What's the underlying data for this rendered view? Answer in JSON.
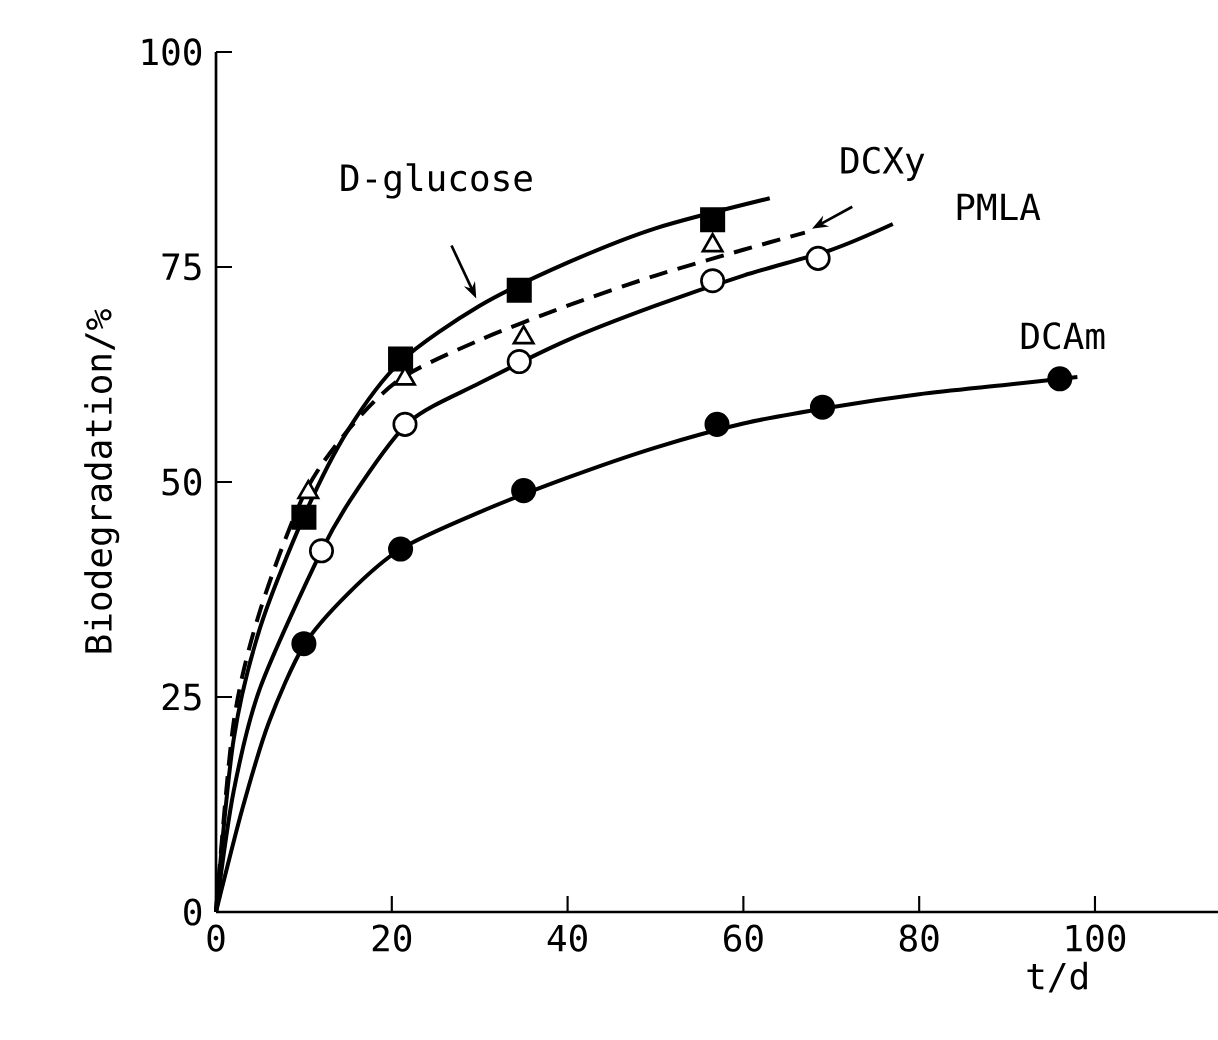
{
  "chart_data": {
    "type": "scatter",
    "xlabel": "t/d",
    "ylabel": "Biodegradation/%",
    "xlim": [
      0,
      114
    ],
    "ylim": [
      0,
      100
    ],
    "xticks": [
      0,
      20,
      40,
      60,
      80,
      100
    ],
    "yticks": [
      0,
      25,
      50,
      75,
      100
    ],
    "annotations": [
      {
        "text": "D-glucose",
        "x": 30,
        "y": 70.5
      },
      {
        "text": "DCXy",
        "x": 67,
        "y": 79
      },
      "PMLA",
      "DCAm"
    ],
    "series": [
      {
        "marker": "square",
        "color": "#000000",
        "x": [
          10,
          21,
          34.5,
          56.5
        ],
        "values": [
          45.9,
          64.3,
          72.3,
          80.5
        ]
      },
      {
        "marker": "triangle",
        "color": "#ffffff",
        "x": [
          10.5,
          21.5,
          35,
          56.5
        ],
        "values": [
          48.8,
          62.0,
          66.8,
          77.5
        ]
      },
      {
        "marker": "circle",
        "color": "#ffffff",
        "x": [
          12,
          21.5,
          34.5,
          56.5,
          68.5
        ],
        "values": [
          42.0,
          56.7,
          64.0,
          73.4,
          76.0
        ]
      },
      {
        "marker": "circle",
        "color": "#000000",
        "x": [
          10,
          21,
          35,
          57,
          69,
          96
        ],
        "values": [
          31.2,
          42.2,
          49.0,
          56.7,
          58.7,
          62.0
        ]
      },
      {
        "type": "line",
        "line_style": "solid",
        "color": "#000000",
        "x": [
          0,
          2,
          5,
          10,
          15,
          21,
          30,
          40,
          50,
          63
        ],
        "values": [
          0,
          20,
          33,
          46,
          56,
          64,
          70.5,
          75.5,
          79.5,
          83
        ]
      },
      {
        "type": "line",
        "line_style": "dashed",
        "color": "#000000",
        "x": [
          0,
          2,
          5,
          10,
          15,
          21,
          30,
          40,
          50,
          60,
          67
        ],
        "values": [
          0,
          22,
          35,
          48.5,
          56,
          62,
          66.5,
          70.5,
          74,
          77,
          79
        ]
      },
      {
        "type": "line",
        "line_style": "solid",
        "color": "#000000",
        "x": [
          0,
          2,
          5,
          12,
          16,
          22,
          30,
          40,
          50,
          60,
          70,
          77
        ],
        "values": [
          0,
          14,
          26,
          42,
          49,
          57,
          61.5,
          66.5,
          70.5,
          74,
          77,
          80
        ]
      },
      {
        "type": "line",
        "line_style": "solid",
        "color": "#000000",
        "x": [
          0,
          3,
          6,
          10,
          15,
          21,
          30,
          40,
          50,
          60,
          70,
          80,
          90,
          98
        ],
        "values": [
          0,
          12,
          22,
          31,
          37,
          42.2,
          46.5,
          50.5,
          54,
          56.8,
          58.7,
          60.2,
          61.3,
          62.2
        ]
      }
    ]
  }
}
